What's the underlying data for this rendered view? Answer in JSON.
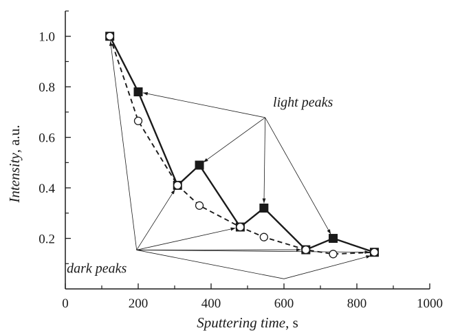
{
  "chart_data": {
    "type": "line",
    "xlabel_italic": "Sputtering time",
    "xlabel_unit": ", s",
    "ylabel_italic": "Intensity",
    "ylabel_unit": ", a.u.",
    "xlim": [
      0,
      1000
    ],
    "ylim": [
      0,
      1.1
    ],
    "xticks": [
      0,
      200,
      400,
      600,
      800,
      1000
    ],
    "xtick_labels": [
      "0",
      "200",
      "400",
      "600",
      "800",
      "1000"
    ],
    "yticks": [
      0.2,
      0.4,
      0.6,
      0.8,
      1.0
    ],
    "ytick_labels": [
      "0.2",
      "0.4",
      "0.6",
      "0.8",
      "1.0"
    ],
    "grid": false,
    "series": [
      {
        "style": "solid",
        "marker": "filled-square",
        "color": "#1a1a1a",
        "x": [
          122,
          200,
          308,
          368,
          480,
          545,
          660,
          735,
          848
        ],
        "y": [
          1.0,
          0.78,
          0.41,
          0.49,
          0.245,
          0.32,
          0.155,
          0.2,
          0.145
        ]
      },
      {
        "style": "dashed",
        "marker": "open-circle",
        "color": "#1a1a1a",
        "x": [
          122,
          200,
          308,
          368,
          480,
          545,
          660,
          735,
          848
        ],
        "y": [
          1.0,
          0.665,
          0.41,
          0.33,
          0.245,
          0.205,
          0.155,
          0.138,
          0.145
        ]
      }
    ],
    "annotations": [
      {
        "text": "light peaks",
        "x": 605,
        "y": 0.7,
        "points_to_series": 0,
        "points_to_indices": [
          1,
          3,
          5,
          7
        ]
      },
      {
        "text": "dark peaks",
        "x": 290,
        "y": 0.105,
        "points_to_series": 1,
        "points_to_indices": [
          0,
          2,
          4,
          6,
          8
        ]
      }
    ]
  }
}
